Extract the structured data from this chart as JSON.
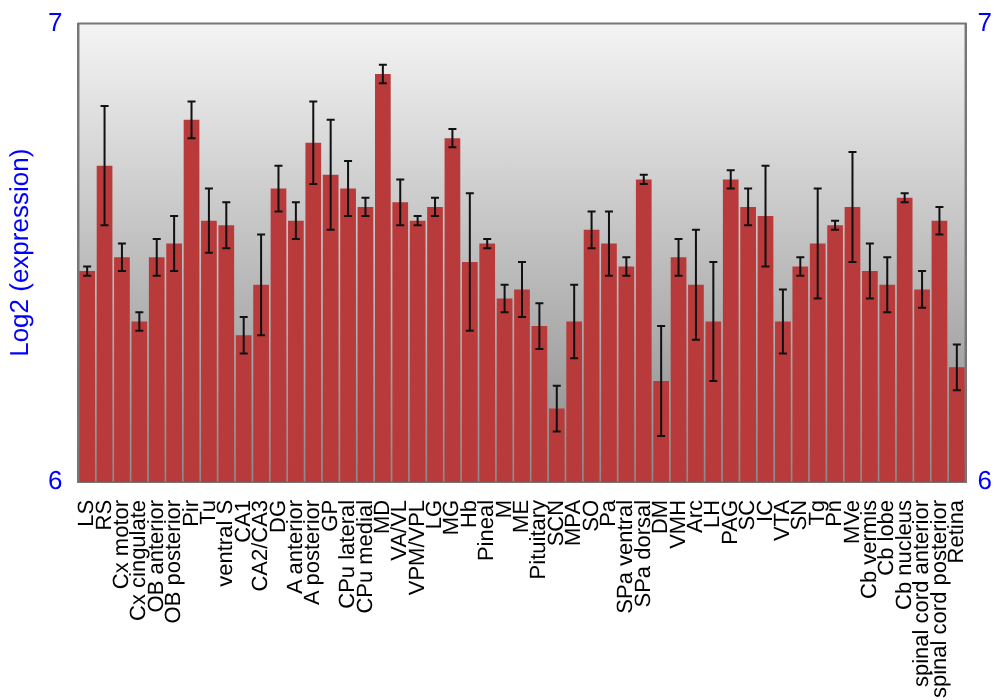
{
  "chart_data": {
    "type": "bar",
    "ylabel": "Log2 (expression)",
    "categories": [
      "LS",
      "RS",
      "Cx motor",
      "Cx cingulate",
      "OB anterior",
      "OB posterior",
      "Pir",
      "Tu",
      "ventral S",
      "CA1",
      "CA2/CA3",
      "DG",
      "A anterior",
      "A posterior",
      "GP",
      "CPu lateral",
      "CPu medial",
      "MD",
      "VA/VL",
      "VPM/VPL",
      "LG",
      "MG",
      "Hb",
      "Pineal",
      "M",
      "ME",
      "Pituitary",
      "SCN",
      "MPA",
      "SO",
      "Pa",
      "SPa ventral",
      "SPa dorsal",
      "DM",
      "VMH",
      "Arc",
      "LH",
      "PAG",
      "SC",
      "IC",
      "VTA",
      "SN",
      "Tg",
      "Pn",
      "MVe",
      "Cb vermis",
      "Cb lobe",
      "Cb nucleus",
      "spinal cord anterior",
      "spinal cord posterior",
      "Retina"
    ],
    "values": [
      6.46,
      6.69,
      6.49,
      6.35,
      6.49,
      6.52,
      6.79,
      6.57,
      6.56,
      6.32,
      6.43,
      6.64,
      6.57,
      6.74,
      6.67,
      6.64,
      6.6,
      6.89,
      6.61,
      6.57,
      6.6,
      6.75,
      6.48,
      6.52,
      6.4,
      6.42,
      6.34,
      6.16,
      6.35,
      6.55,
      6.52,
      6.47,
      6.66,
      6.22,
      6.49,
      6.43,
      6.35,
      6.66,
      6.6,
      6.58,
      6.35,
      6.47,
      6.52,
      6.56,
      6.6,
      6.46,
      6.43,
      6.62,
      6.42,
      6.57,
      6.25
    ],
    "errors": [
      0.01,
      0.13,
      0.03,
      0.02,
      0.04,
      0.06,
      0.04,
      0.07,
      0.05,
      0.04,
      0.11,
      0.05,
      0.04,
      0.09,
      0.12,
      0.06,
      0.02,
      0.02,
      0.05,
      0.01,
      0.02,
      0.02,
      0.15,
      0.01,
      0.03,
      0.06,
      0.05,
      0.05,
      0.08,
      0.04,
      0.07,
      0.02,
      0.01,
      0.12,
      0.04,
      0.12,
      0.13,
      0.02,
      0.04,
      0.11,
      0.07,
      0.02,
      0.12,
      0.01,
      0.12,
      0.06,
      0.06,
      0.01,
      0.04,
      0.03,
      0.05
    ],
    "color": "#b83a3a",
    "ylim": [
      6,
      7
    ],
    "yticks": [
      6,
      7
    ],
    "y2lim": [
      6,
      7
    ],
    "y2ticks": [
      6,
      7
    ],
    "grid": false,
    "legend": false
  }
}
